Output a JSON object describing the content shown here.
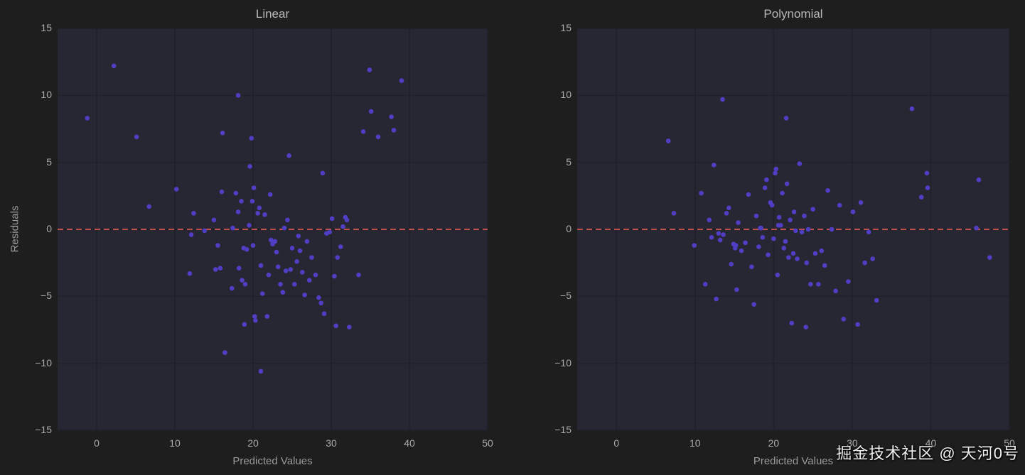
{
  "colors": {
    "page_bg": "#1e1e1f",
    "plot_bg": "#262733",
    "grid": "#1f2029",
    "point": "#4f3fc4",
    "zero_line": "#c0504d",
    "text": "#aaaaaa"
  },
  "watermark": "掘金技术社区 @ 天河0号",
  "chart_data": [
    {
      "type": "scatter",
      "title": "Linear",
      "xlabel": "Predicted Values",
      "ylabel": "Residuals",
      "xlim": [
        -5,
        50
      ],
      "ylim": [
        -15,
        15
      ],
      "xticks": [
        0,
        10,
        20,
        30,
        40,
        50
      ],
      "yticks": [
        15,
        10,
        5,
        0,
        -5,
        -10,
        -15
      ],
      "ytick_labels": [
        "15",
        "10",
        "5",
        "0",
        "−5",
        "−10",
        "−15"
      ],
      "grid": true,
      "reference_line": {
        "y": 0,
        "style": "dashed",
        "color": "#c0504d"
      },
      "x": [
        -1.2,
        2.2,
        5.1,
        6.7,
        10.2,
        12.1,
        11.9,
        12.4,
        13.8,
        15.0,
        15.5,
        15.2,
        15.8,
        16.0,
        16.1,
        16.4,
        17.3,
        17.4,
        17.8,
        18.1,
        18.2,
        18.5,
        18.6,
        18.8,
        18.9,
        19.0,
        19.2,
        19.5,
        19.8,
        19.9,
        20.0,
        20.1,
        20.2,
        20.3,
        20.6,
        20.8,
        21.0,
        21.2,
        21.5,
        21.8,
        22.0,
        22.3,
        22.2,
        22.5,
        22.8,
        23.0,
        23.2,
        23.5,
        23.8,
        24.0,
        24.2,
        24.4,
        24.6,
        24.8,
        25.0,
        25.3,
        25.6,
        25.8,
        26.0,
        26.3,
        26.6,
        26.9,
        27.2,
        27.5,
        28.0,
        28.4,
        28.7,
        28.9,
        29.1,
        29.4,
        29.8,
        30.1,
        30.4,
        30.6,
        30.8,
        31.2,
        31.5,
        31.8,
        32.0,
        32.3,
        33.5,
        34.1,
        34.9,
        35.1,
        36.0,
        37.7,
        38.0,
        39.0,
        18.1,
        16.4,
        21.0,
        19.6
      ],
      "y": [
        8.3,
        12.2,
        6.9,
        1.7,
        3.0,
        -0.4,
        -3.3,
        1.2,
        -0.1,
        0.7,
        -1.2,
        -3.0,
        -2.9,
        2.8,
        7.2,
        -9.2,
        -4.4,
        0.1,
        2.7,
        1.3,
        -2.9,
        2.1,
        -3.8,
        -1.4,
        -7.1,
        -4.1,
        -1.5,
        0.3,
        6.8,
        2.1,
        -1.2,
        3.1,
        -6.5,
        -6.8,
        1.2,
        1.6,
        -2.7,
        -4.8,
        1.1,
        -6.5,
        -3.4,
        -0.8,
        2.6,
        -1.1,
        -0.9,
        -1.7,
        -2.8,
        -4.1,
        -4.7,
        0.1,
        -3.1,
        0.7,
        5.5,
        -3.0,
        -1.4,
        -4.1,
        -2.4,
        -0.5,
        -1.6,
        -3.2,
        -4.9,
        -0.9,
        -3.8,
        -2.1,
        -3.4,
        -5.1,
        -5.5,
        4.2,
        -6.3,
        -0.3,
        -0.2,
        0.8,
        -3.5,
        -7.2,
        -2.1,
        -1.3,
        0.2,
        0.9,
        0.7,
        -7.3,
        -3.4,
        7.3,
        11.9,
        8.8,
        6.9,
        8.4,
        7.4,
        11.1,
        10.0,
        -9.2,
        -10.6,
        4.7
      ],
      "point_color": "#4f3fc4"
    },
    {
      "type": "scatter",
      "title": "Polynomial",
      "xlabel": "Predicted Values",
      "ylabel": "",
      "xlim": [
        -5,
        50
      ],
      "ylim": [
        -15,
        15
      ],
      "xticks": [
        0,
        10,
        20,
        30,
        40,
        50
      ],
      "yticks": [
        15,
        10,
        5,
        0,
        -5,
        -10,
        -15
      ],
      "ytick_labels": [
        "15",
        "10",
        "5",
        "0",
        "−5",
        "−10",
        "−15"
      ],
      "grid": true,
      "reference_line": {
        "y": 0,
        "style": "dashed",
        "color": "#c0504d"
      },
      "x": [
        6.6,
        7.3,
        9.9,
        10.8,
        11.3,
        11.8,
        12.4,
        12.7,
        13.2,
        13.5,
        13.6,
        14.0,
        14.3,
        14.6,
        14.9,
        15.1,
        15.3,
        15.5,
        15.9,
        16.4,
        16.8,
        17.2,
        17.5,
        17.8,
        18.1,
        18.3,
        18.6,
        18.9,
        19.1,
        19.3,
        19.6,
        19.8,
        20.0,
        20.2,
        20.3,
        20.5,
        20.7,
        20.9,
        21.1,
        21.3,
        21.5,
        21.7,
        21.9,
        22.1,
        22.3,
        22.6,
        22.8,
        23.0,
        23.3,
        23.6,
        23.9,
        24.1,
        24.4,
        24.7,
        25.0,
        25.3,
        25.7,
        26.1,
        26.5,
        26.9,
        27.4,
        27.9,
        28.4,
        28.9,
        29.5,
        30.1,
        30.7,
        31.1,
        31.6,
        32.1,
        32.6,
        33.1,
        37.6,
        38.8,
        39.5,
        39.6,
        45.8,
        46.1,
        47.5,
        21.6,
        13.0,
        12.1,
        15.2,
        18.4,
        24.2,
        20.6,
        22.5
      ],
      "y": [
        6.6,
        1.2,
        -1.2,
        2.7,
        -4.1,
        0.7,
        4.8,
        -5.2,
        -0.8,
        9.7,
        -0.4,
        1.2,
        1.6,
        -2.6,
        -1.1,
        -1.4,
        -4.5,
        0.5,
        -1.6,
        -1.0,
        2.6,
        -2.8,
        -5.6,
        1.0,
        -1.3,
        0.1,
        -0.6,
        3.1,
        3.7,
        -1.9,
        2.0,
        1.8,
        -0.7,
        4.2,
        4.5,
        -3.4,
        0.9,
        0.3,
        2.7,
        -1.4,
        -0.9,
        3.4,
        -2.1,
        0.7,
        -7.0,
        1.3,
        -0.1,
        -2.2,
        4.9,
        -0.2,
        1.0,
        -7.3,
        0.0,
        -4.1,
        1.5,
        -1.8,
        -4.1,
        -1.6,
        -2.7,
        2.9,
        0.0,
        -4.6,
        1.8,
        -6.7,
        -3.9,
        1.3,
        -7.1,
        2.0,
        -2.5,
        -0.2,
        -2.2,
        -5.3,
        9.0,
        2.4,
        4.2,
        3.1,
        0.1,
        3.7,
        -2.1,
        8.3,
        -0.3,
        -0.6,
        -1.2,
        0.1,
        -2.5,
        0.3,
        -1.8
      ],
      "point_color": "#4f3fc4"
    }
  ]
}
